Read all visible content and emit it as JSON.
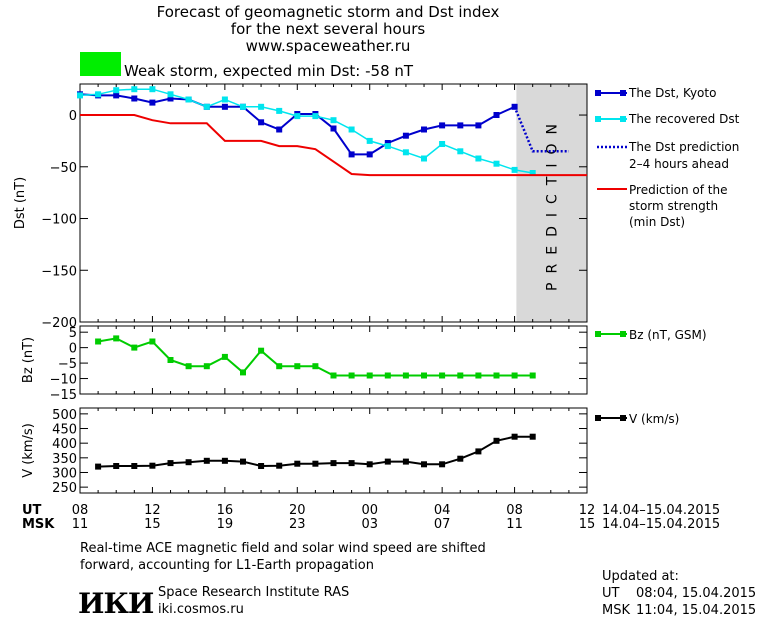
{
  "header": {
    "title_lines": [
      "Forecast of geomagnetic storm and Dst index",
      "for the next several hours",
      "www.spaceweather.ru"
    ],
    "storm_label": "Weak storm, expected min Dst: -58 nT",
    "storm_color": "#00ee00"
  },
  "chart_data": [
    {
      "type": "line",
      "ylabel": "Dst (nT)",
      "ylim": [
        -200,
        30
      ],
      "yticks": [
        0,
        -50,
        -100,
        -150,
        -200
      ],
      "ytick_labels": [
        "0",
        "−50",
        "−100",
        "−150",
        "−200"
      ],
      "xlim_hours": [
        8,
        36
      ],
      "prediction_text": "PREDICTION",
      "prediction_shade_color": "#d9d9d9",
      "series": [
        {
          "name": "The Dst, Kyoto",
          "color": "#0000cc",
          "x": [
            8,
            9,
            10,
            11,
            12,
            13,
            14,
            15,
            16,
            17,
            18,
            19,
            20,
            21,
            22,
            23,
            24,
            25,
            26,
            27,
            28,
            29,
            30,
            31,
            32
          ],
          "y": [
            20,
            19,
            19,
            16,
            12,
            16,
            15,
            8,
            8,
            8,
            -7,
            -14,
            1,
            1,
            -13,
            -38,
            -38,
            -27,
            -20,
            -14,
            -10,
            -10,
            -10,
            0,
            8
          ]
        },
        {
          "name": "The recovered Dst",
          "color": "#00e5ee",
          "x": [
            8,
            9,
            10,
            11,
            12,
            13,
            14,
            15,
            16,
            17,
            18,
            19,
            20,
            21,
            22,
            23,
            24,
            25,
            26,
            27,
            28,
            29,
            30,
            31,
            32,
            33
          ],
          "y": [
            19,
            20,
            24,
            25,
            25,
            20,
            15,
            8,
            15,
            8,
            8,
            4,
            -1,
            -1,
            -5,
            -14,
            -25,
            -30,
            -36,
            -42,
            -28,
            -35,
            -42,
            -47,
            -53,
            -56
          ]
        },
        {
          "name": "The Dst prediction",
          "name_line2": "2–4 hours ahead",
          "color": "#0000cc",
          "x": [
            32,
            33,
            34,
            35
          ],
          "y": [
            8,
            -35,
            -35,
            -35
          ]
        },
        {
          "name": "Prediction of the",
          "name_line2": "storm strength",
          "name_line3": "(min Dst)",
          "color": "#ee0000",
          "x": [
            8,
            11,
            12,
            13,
            15,
            16,
            18,
            19,
            20,
            21,
            22,
            23,
            24,
            36
          ],
          "y": [
            0,
            0,
            -5,
            -8,
            -8,
            -25,
            -25,
            -30,
            -30,
            -33,
            -45,
            -57,
            -58,
            -58
          ]
        }
      ]
    },
    {
      "type": "line",
      "ylabel": "Bz (nT)",
      "ylim": [
        -15,
        7
      ],
      "yticks": [
        5,
        0,
        -5,
        -10,
        -15
      ],
      "ytick_labels": [
        "5",
        "0",
        "−5",
        "−10",
        "−15"
      ],
      "series": [
        {
          "name": "Bz (nT, GSM)",
          "color": "#00cc00",
          "x": [
            9,
            10,
            11,
            12,
            13,
            14,
            15,
            16,
            17,
            18,
            19,
            20,
            21,
            22,
            23,
            24,
            25,
            26,
            27,
            28,
            29,
            30,
            31,
            32,
            33
          ],
          "y": [
            2,
            3,
            0,
            2,
            -4,
            -6,
            -6,
            -3,
            -8,
            -1,
            -6,
            -6,
            -6,
            -9,
            -9,
            -9,
            -9,
            -9,
            -9,
            -9,
            -9,
            -9,
            -9,
            -9,
            -9
          ]
        }
      ]
    },
    {
      "type": "line",
      "ylabel": "V (km/s)",
      "ylim": [
        230,
        520
      ],
      "yticks": [
        500,
        450,
        400,
        350,
        300,
        250
      ],
      "ytick_labels": [
        "500",
        "450",
        "400",
        "350",
        "300",
        "250"
      ],
      "series": [
        {
          "name": "V (km/s)",
          "color": "#000000",
          "x": [
            9,
            10,
            11,
            12,
            13,
            14,
            15,
            16,
            17,
            18,
            19,
            20,
            21,
            22,
            23,
            24,
            25,
            26,
            27,
            28,
            29,
            30,
            31,
            32,
            33
          ],
          "y": [
            320,
            322,
            322,
            323,
            332,
            335,
            340,
            340,
            337,
            322,
            323,
            330,
            330,
            332,
            332,
            328,
            337,
            337,
            328,
            328,
            347,
            372,
            408,
            422,
            422
          ]
        }
      ]
    }
  ],
  "xaxis": {
    "ticks_hours": [
      8,
      12,
      16,
      20,
      24,
      28,
      32,
      36
    ],
    "ut_label": "UT",
    "msk_label": "MSK",
    "ut_ticks": [
      "08",
      "12",
      "16",
      "20",
      "00",
      "04",
      "08",
      "12"
    ],
    "msk_ticks": [
      "11",
      "15",
      "19",
      "23",
      "03",
      "07",
      "11",
      "15"
    ],
    "date_range_ut": "14.04–15.04.2015",
    "date_range_msk": "14.04–15.04.2015"
  },
  "footer": {
    "note_line1": "Real-time ACE magnetic field and solar wind speed are shifted",
    "note_line2": "forward, accounting for L1-Earth propagation",
    "logo_text": "ИКИ",
    "institute": "Space Research Institute RAS",
    "website": "iki.cosmos.ru",
    "updated_label": "Updated at:",
    "updated_ut_label": "UT",
    "updated_ut": "08:04, 15.04.2015",
    "updated_msk_label": "MSK",
    "updated_msk": "11:04, 15.04.2015"
  }
}
